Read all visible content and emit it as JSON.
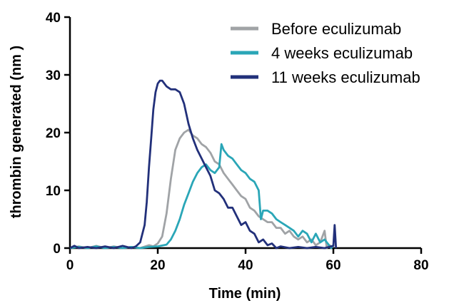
{
  "chart_data": {
    "type": "line",
    "xlabel": "Time (min)",
    "ylabel": "thrombin generated (nm )",
    "xlim": [
      0,
      80
    ],
    "ylim": [
      0,
      40
    ],
    "x_ticks": [
      0,
      20,
      40,
      60,
      80
    ],
    "y_ticks": [
      0,
      10,
      20,
      30,
      40
    ],
    "grid": false,
    "legend_position": "top-right",
    "series": [
      {
        "name": "Before eculizumab",
        "color": "#a0a3a6",
        "points": [
          [
            0,
            0
          ],
          [
            2,
            0.3
          ],
          [
            4,
            0
          ],
          [
            6,
            0.4
          ],
          [
            8,
            0
          ],
          [
            10,
            0.3
          ],
          [
            12,
            0
          ],
          [
            14,
            0.2
          ],
          [
            16,
            0
          ],
          [
            18,
            0.5
          ],
          [
            19,
            0.3
          ],
          [
            20,
            0.8
          ],
          [
            21,
            2
          ],
          [
            22,
            6
          ],
          [
            23,
            12
          ],
          [
            24,
            17
          ],
          [
            25,
            19
          ],
          [
            26,
            20
          ],
          [
            27,
            20.5
          ],
          [
            28,
            19.5
          ],
          [
            29,
            19
          ],
          [
            30,
            18
          ],
          [
            31,
            17.5
          ],
          [
            32,
            16.5
          ],
          [
            33,
            15
          ],
          [
            34,
            14.5
          ],
          [
            35,
            13
          ],
          [
            36,
            12
          ],
          [
            37,
            11
          ],
          [
            38,
            10
          ],
          [
            39,
            9
          ],
          [
            40,
            8.5
          ],
          [
            41,
            7
          ],
          [
            42,
            6.5
          ],
          [
            43,
            5.5
          ],
          [
            44,
            5
          ],
          [
            45,
            4.5
          ],
          [
            46,
            4.5
          ],
          [
            47,
            3.5
          ],
          [
            48,
            3.5
          ],
          [
            49,
            2.5
          ],
          [
            50,
            3
          ],
          [
            51,
            2
          ],
          [
            52,
            1.5
          ],
          [
            53,
            2
          ],
          [
            54,
            1
          ],
          [
            55,
            1.5
          ],
          [
            56,
            0.5
          ],
          [
            57,
            1
          ],
          [
            58,
            3
          ],
          [
            58.5,
            0
          ],
          [
            59,
            0.5
          ],
          [
            60,
            0.2
          ]
        ]
      },
      {
        "name": "4 weeks eculizumab",
        "color": "#2aa6b7",
        "points": [
          [
            0,
            0
          ],
          [
            2,
            0.2
          ],
          [
            4,
            0
          ],
          [
            6,
            0.3
          ],
          [
            8,
            0
          ],
          [
            10,
            0.2
          ],
          [
            12,
            0
          ],
          [
            14,
            0.2
          ],
          [
            16,
            0
          ],
          [
            18,
            0.2
          ],
          [
            20,
            0.3
          ],
          [
            22,
            0.6
          ],
          [
            23,
            1.5
          ],
          [
            24,
            3
          ],
          [
            25,
            5
          ],
          [
            26,
            7.5
          ],
          [
            27,
            9.5
          ],
          [
            28,
            11.5
          ],
          [
            29,
            13
          ],
          [
            30,
            14
          ],
          [
            31,
            14.5
          ],
          [
            32,
            13.5
          ],
          [
            33,
            13
          ],
          [
            34,
            14
          ],
          [
            34.5,
            18
          ],
          [
            35,
            17
          ],
          [
            36,
            16
          ],
          [
            37,
            15.5
          ],
          [
            38,
            14.5
          ],
          [
            39,
            13.5
          ],
          [
            40,
            13
          ],
          [
            41,
            12
          ],
          [
            42,
            11.5
          ],
          [
            43,
            10
          ],
          [
            43.5,
            5
          ],
          [
            44,
            6.5
          ],
          [
            45,
            6.5
          ],
          [
            46,
            6
          ],
          [
            47,
            5
          ],
          [
            48,
            4.5
          ],
          [
            49,
            4
          ],
          [
            50,
            3.5
          ],
          [
            51,
            3
          ],
          [
            52,
            2
          ],
          [
            53,
            3
          ],
          [
            54,
            2.5
          ],
          [
            55,
            1
          ],
          [
            56,
            2.5
          ],
          [
            57,
            1
          ],
          [
            58,
            1.5
          ],
          [
            59,
            0.5
          ],
          [
            59.5,
            0
          ],
          [
            60,
            0.5
          ]
        ]
      },
      {
        "name": "11 weeks eculizumab",
        "color": "#22307a",
        "points": [
          [
            0,
            0
          ],
          [
            1,
            0.4
          ],
          [
            2,
            0
          ],
          [
            4,
            0.2
          ],
          [
            6,
            0
          ],
          [
            8,
            0.3
          ],
          [
            10,
            0
          ],
          [
            12,
            0.4
          ],
          [
            14,
            0
          ],
          [
            15,
            0.3
          ],
          [
            16,
            1
          ],
          [
            17,
            4
          ],
          [
            17.5,
            8
          ],
          [
            18,
            14
          ],
          [
            18.5,
            19
          ],
          [
            19,
            24
          ],
          [
            19.5,
            27
          ],
          [
            20,
            28.5
          ],
          [
            20.5,
            29
          ],
          [
            21,
            29
          ],
          [
            22,
            28
          ],
          [
            23,
            27.5
          ],
          [
            24,
            27.5
          ],
          [
            25,
            27
          ],
          [
            26,
            25
          ],
          [
            27,
            21.5
          ],
          [
            28,
            19
          ],
          [
            29,
            17
          ],
          [
            30,
            15.5
          ],
          [
            31,
            14
          ],
          [
            32,
            12.5
          ],
          [
            33,
            10
          ],
          [
            34,
            9.5
          ],
          [
            35,
            8.5
          ],
          [
            36,
            7
          ],
          [
            37,
            7
          ],
          [
            38,
            5.5
          ],
          [
            39,
            4
          ],
          [
            40,
            4.5
          ],
          [
            41,
            3
          ],
          [
            42,
            2.5
          ],
          [
            43,
            1
          ],
          [
            44,
            1.5
          ],
          [
            45,
            0.5
          ],
          [
            46,
            0.8
          ],
          [
            47,
            0
          ],
          [
            48,
            0.3
          ],
          [
            50,
            0
          ],
          [
            52,
            0.2
          ],
          [
            54,
            0
          ],
          [
            56,
            0.2
          ],
          [
            58,
            0
          ],
          [
            60,
            0.4
          ],
          [
            60.3,
            4
          ],
          [
            60.6,
            0
          ]
        ]
      }
    ]
  }
}
